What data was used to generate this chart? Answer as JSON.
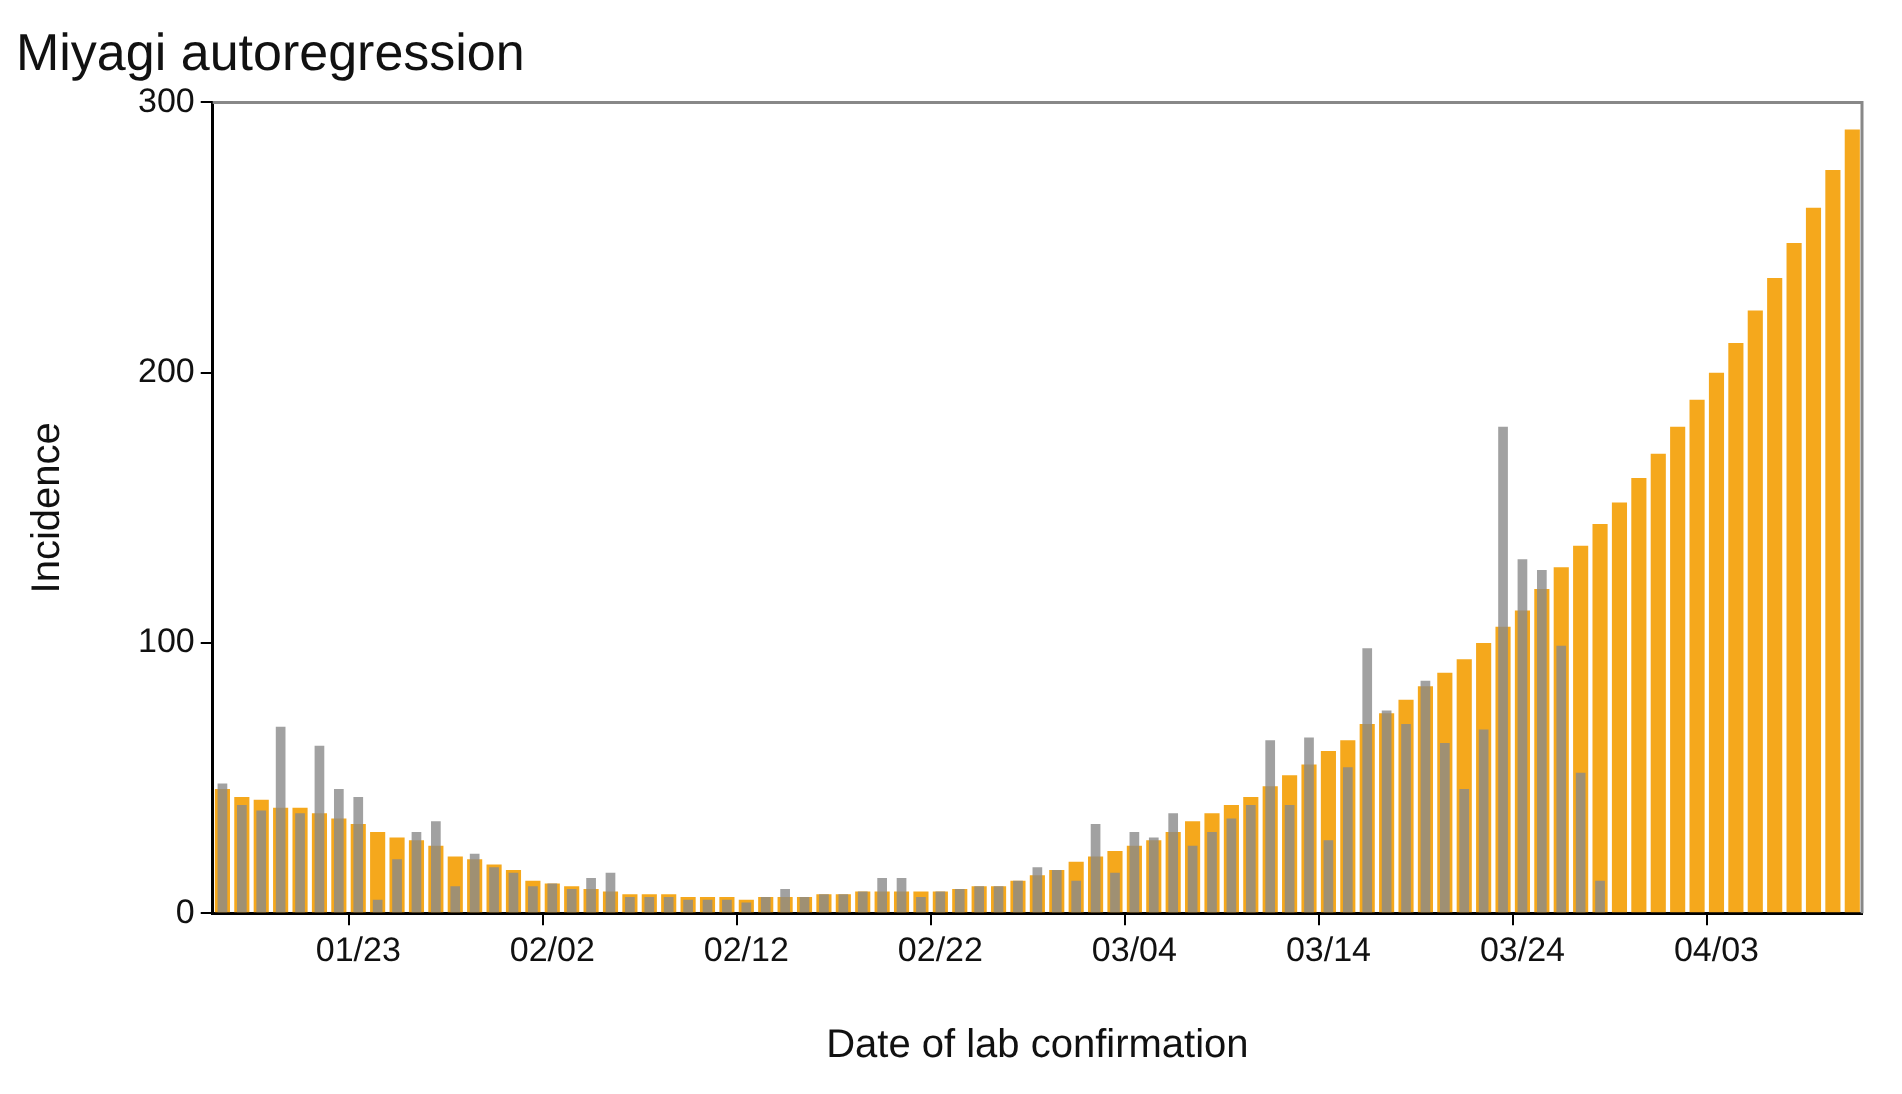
{
  "chart_data": {
    "type": "bar",
    "title": "Miyagi autoregression",
    "xlabel": "Date of lab confirmation",
    "ylabel": "Incidence",
    "categories": [
      null,
      null,
      null,
      null,
      null,
      null,
      null,
      "01/23",
      null,
      null,
      null,
      null,
      null,
      null,
      null,
      null,
      null,
      "02/02",
      null,
      null,
      null,
      null,
      null,
      null,
      null,
      null,
      null,
      "02/12",
      null,
      null,
      null,
      null,
      null,
      null,
      null,
      null,
      null,
      "02/22",
      null,
      null,
      null,
      null,
      null,
      null,
      null,
      null,
      null,
      "03/04",
      null,
      null,
      null,
      null,
      null,
      null,
      null,
      null,
      null,
      "03/14",
      null,
      null,
      null,
      null,
      null,
      null,
      null,
      null,
      null,
      "03/24",
      null,
      null,
      null,
      null,
      null,
      null,
      null,
      null,
      null,
      "04/03",
      null,
      null,
      null,
      null,
      null,
      null,
      null
    ],
    "series": [
      {
        "color": "#f5a81c",
        "values": [
          46,
          43,
          42,
          39,
          39,
          37,
          35,
          33,
          30,
          28,
          27,
          25,
          21,
          20,
          18,
          16,
          12,
          11,
          10,
          9,
          8,
          7,
          7,
          7,
          6,
          6,
          6,
          5,
          6,
          6,
          6,
          7,
          7,
          8,
          8,
          8,
          8,
          8,
          9,
          10,
          10,
          12,
          14,
          16,
          19,
          21,
          23,
          25,
          27,
          30,
          34,
          37,
          40,
          43,
          47,
          51,
          55,
          60,
          64,
          70,
          74,
          79,
          84,
          89,
          94,
          100,
          106,
          112,
          120,
          128,
          136,
          144,
          152,
          161,
          170,
          180,
          190,
          200,
          211,
          223,
          235,
          248,
          261,
          275,
          290
        ]
      },
      {
        "color": "#8a8a8a",
        "values": [
          48,
          40,
          38,
          69,
          37,
          62,
          46,
          43,
          5,
          20,
          30,
          34,
          10,
          22,
          17,
          15,
          10,
          11,
          9,
          13,
          15,
          6,
          6,
          6,
          5,
          5,
          5,
          4,
          6,
          9,
          6,
          7,
          7,
          8,
          13,
          13,
          6,
          8,
          9,
          10,
          10,
          12,
          17,
          16,
          12,
          33,
          15,
          30,
          28,
          37,
          25,
          30,
          35,
          40,
          64,
          40,
          65,
          27,
          54,
          98,
          75,
          70,
          86,
          63,
          46,
          68,
          180,
          131,
          127,
          99,
          52,
          12,
          null,
          null,
          null,
          null,
          null,
          null,
          null,
          null,
          null,
          null,
          null,
          null,
          null
        ]
      }
    ],
    "ylim": [
      0,
      300
    ],
    "yticks": [
      0,
      100,
      200,
      300
    ],
    "grid": false,
    "legend": false
  }
}
